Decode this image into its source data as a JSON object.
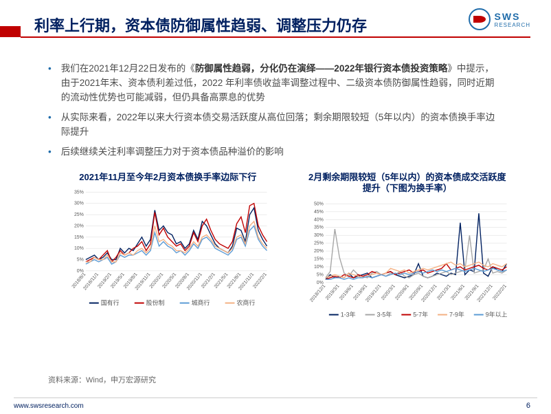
{
  "title": "利率上行期，资本债防御属性趋弱、调整压力仍存",
  "logo": {
    "main": "SWS",
    "sub": "RESEARCH"
  },
  "bullets": [
    {
      "prefix": "我们在2021年12月22日发布的《",
      "bold": "防御属性趋弱，分化仍在演绎——2022年银行资本债投资策略",
      "suffix": "》中提示，由于2021年末、资本债利差过低，2022 年利率债收益率调整过程中、二级资本债防御属性趋弱，同时近期的流动性优势也可能减弱，但仍具备高票息的优势"
    },
    {
      "prefix": "从实际来看，2022年以来大行资本债交易活跃度从高位回落；剩余期限较短（5年以内）的资本债换手率边际提升",
      "bold": "",
      "suffix": ""
    },
    {
      "prefix": "后续继续关注利率调整压力对于资本债品种溢价的影响",
      "bold": "",
      "suffix": ""
    }
  ],
  "chart1": {
    "title": "2021年11月至今年2月资本债换手率边际下行",
    "ylim": [
      0,
      35
    ],
    "ystep": 5,
    "background": "#ffffff",
    "grid_color": "#d9d9d9",
    "x_labels": [
      "2018/8/1",
      "2018/11/1",
      "2019/2/1",
      "2019/5/1",
      "2019/8/1",
      "2019/11/1",
      "2020/2/1",
      "2020/5/1",
      "2020/8/1",
      "2020/11/1",
      "2021/2/1",
      "2021/5/1",
      "2021/8/1",
      "2021/11/1",
      "2022/2/1"
    ],
    "series": [
      {
        "name": "国有行",
        "color": "#002060",
        "values": [
          5,
          6,
          7,
          5,
          6,
          8,
          5,
          5,
          10,
          8,
          10,
          9,
          12,
          15,
          11,
          14,
          27,
          18,
          20,
          17,
          16,
          12,
          13,
          10,
          12,
          18,
          14,
          22,
          20,
          16,
          12,
          10,
          9,
          8,
          11,
          19,
          18,
          13,
          25,
          28,
          18,
          14,
          11
        ]
      },
      {
        "name": "股份制",
        "color": "#c00000",
        "values": [
          4,
          5,
          6,
          5,
          7,
          9,
          4,
          6,
          9,
          7,
          8,
          10,
          11,
          13,
          9,
          12,
          26,
          16,
          19,
          15,
          13,
          11,
          12,
          9,
          11,
          17,
          13,
          20,
          23,
          18,
          14,
          12,
          11,
          10,
          13,
          21,
          24,
          17,
          29,
          30,
          20,
          16,
          13
        ]
      },
      {
        "name": "城商行",
        "color": "#5b9bd5",
        "values": [
          3,
          4,
          5,
          4,
          5,
          6,
          3,
          4,
          7,
          6,
          7,
          7,
          8,
          9,
          7,
          9,
          17,
          11,
          13,
          11,
          10,
          8,
          9,
          7,
          9,
          12,
          10,
          14,
          15,
          13,
          10,
          9,
          8,
          7,
          9,
          14,
          15,
          11,
          18,
          20,
          14,
          11,
          9
        ]
      },
      {
        "name": "农商行",
        "color": "#f4b183",
        "values": [
          4,
          4,
          6,
          5,
          5,
          7,
          4,
          4,
          8,
          7,
          8,
          7,
          9,
          10,
          8,
          10,
          20,
          13,
          14,
          12,
          11,
          9,
          9,
          8,
          10,
          13,
          11,
          15,
          16,
          14,
          11,
          10,
          9,
          8,
          10,
          15,
          16,
          12,
          20,
          22,
          15,
          12,
          10
        ]
      }
    ],
    "legend_fontsize": 9
  },
  "chart2": {
    "title": "2月剩余期限较短（5年以内）的资本债成交活跃度提升（下图为换手率）",
    "ylim": [
      0,
      50
    ],
    "ystep": 5,
    "background": "#ffffff",
    "grid_color": "#d9d9d9",
    "x_labels": [
      "2018/12/1",
      "2019/3/1",
      "2019/6/1",
      "2019/9/1",
      "2019/12/1",
      "2020/3/1",
      "2020/6/1",
      "2020/9/1",
      "2020/12/1",
      "2021/3/1",
      "2021/6/1",
      "2021/9/1",
      "2021/12/1",
      "2022/2/1"
    ],
    "series": [
      {
        "name": "1-3年",
        "color": "#002060",
        "values": [
          2,
          5,
          3,
          4,
          3,
          6,
          3,
          4,
          5,
          6,
          3,
          4,
          5,
          6,
          7,
          5,
          4,
          3,
          4,
          5,
          12,
          4,
          3,
          4,
          6,
          5,
          4,
          6,
          5,
          38,
          5,
          8,
          7,
          44,
          6,
          4,
          10,
          8,
          7,
          12
        ]
      },
      {
        "name": "3-5年",
        "color": "#a6a6a6",
        "values": [
          3,
          7,
          34,
          16,
          6,
          4,
          8,
          5,
          4,
          3,
          6,
          7,
          5,
          4,
          6,
          5,
          7,
          4,
          3,
          5,
          6,
          4,
          3,
          4,
          5,
          6,
          7,
          5,
          6,
          7,
          8,
          30,
          6,
          7,
          8,
          15,
          6,
          7,
          6,
          8
        ]
      },
      {
        "name": "5-7年",
        "color": "#c00000",
        "values": [
          2,
          3,
          4,
          3,
          5,
          4,
          3,
          5,
          4,
          5,
          7,
          6,
          5,
          6,
          7,
          5,
          6,
          7,
          8,
          6,
          7,
          8,
          6,
          7,
          8,
          9,
          12,
          8,
          9,
          10,
          8,
          9,
          10,
          11,
          9,
          8,
          10,
          9,
          8,
          10
        ]
      },
      {
        "name": "7-9年",
        "color": "#f4b183",
        "values": [
          3,
          4,
          5,
          4,
          3,
          6,
          5,
          4,
          3,
          4,
          5,
          6,
          5,
          6,
          9,
          8,
          7,
          8,
          6,
          7,
          8,
          9,
          8,
          9,
          10,
          11,
          12,
          13,
          11,
          12,
          10,
          11,
          12,
          13,
          11,
          10,
          12,
          11,
          10,
          12
        ]
      },
      {
        "name": "9年以上",
        "color": "#5b9bd5",
        "values": [
          2,
          2,
          3,
          3,
          2,
          3,
          2,
          3,
          3,
          4,
          3,
          4,
          5,
          4,
          5,
          6,
          5,
          6,
          5,
          6,
          7,
          6,
          7,
          8,
          7,
          8,
          7,
          8,
          9,
          8,
          7,
          8,
          9,
          8,
          7,
          8,
          9,
          8,
          7,
          8
        ]
      }
    ],
    "legend_fontsize": 9
  },
  "source": "资料来源：Wind，申万宏源研究",
  "footer": {
    "url": "www.swsresearch.com",
    "page": "6"
  }
}
